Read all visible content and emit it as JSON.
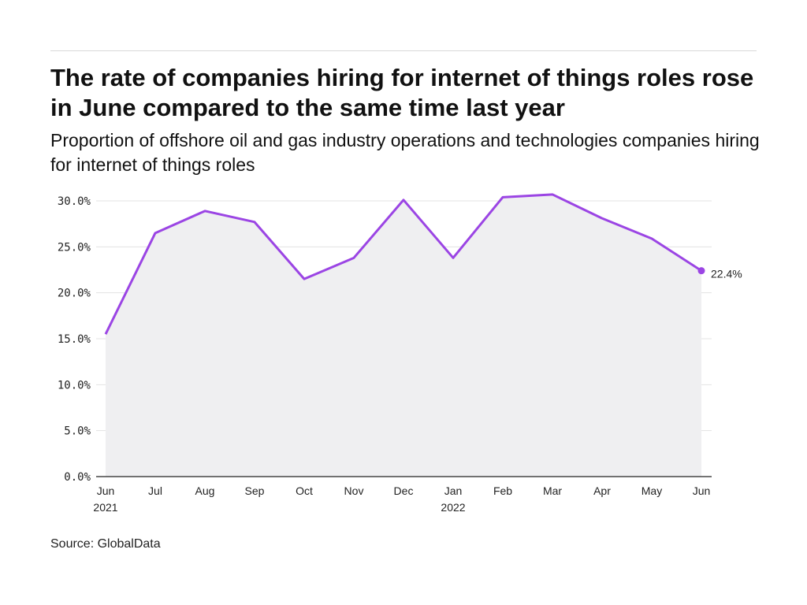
{
  "header": {
    "title": "The rate of companies hiring for internet of things roles rose in June compared to the same time last year",
    "subtitle": "Proportion of offshore oil and gas industry operations and technologies companies hiring for internet of things roles"
  },
  "footer": {
    "source": "Source: GlobalData"
  },
  "colors": {
    "line": "#9b45e4",
    "area": "#efeff1",
    "grid": "#e3e3e3",
    "axis": "#222222"
  },
  "chart_data": {
    "type": "area",
    "title": "The rate of companies hiring for internet of things roles rose in June compared to the same time last year",
    "subtitle": "Proportion of offshore oil and gas industry operations and technologies companies hiring for internet of things roles",
    "xlabel": "",
    "ylabel": "",
    "categories": [
      [
        "Jun",
        "2021"
      ],
      [
        "Jul",
        ""
      ],
      [
        "Aug",
        ""
      ],
      [
        "Sep",
        ""
      ],
      [
        "Oct",
        ""
      ],
      [
        "Nov",
        ""
      ],
      [
        "Dec",
        ""
      ],
      [
        "Jan",
        "2022"
      ],
      [
        "Feb",
        ""
      ],
      [
        "Mar",
        ""
      ],
      [
        "Apr",
        ""
      ],
      [
        "May",
        ""
      ],
      [
        "Jun",
        ""
      ]
    ],
    "values": [
      15.5,
      26.5,
      28.9,
      27.7,
      21.5,
      23.8,
      30.1,
      23.8,
      30.4,
      30.7,
      28.1,
      25.9,
      22.4
    ],
    "ylim": [
      0,
      30
    ],
    "yticks": [
      0,
      5,
      10,
      15,
      20,
      25,
      30
    ],
    "ytick_labels": [
      "0.0%",
      "5.0%",
      "10.0%",
      "15.0%",
      "20.0%",
      "25.0%",
      "30.0%"
    ],
    "end_label": "22.4%",
    "grid": true,
    "legend": "none"
  }
}
